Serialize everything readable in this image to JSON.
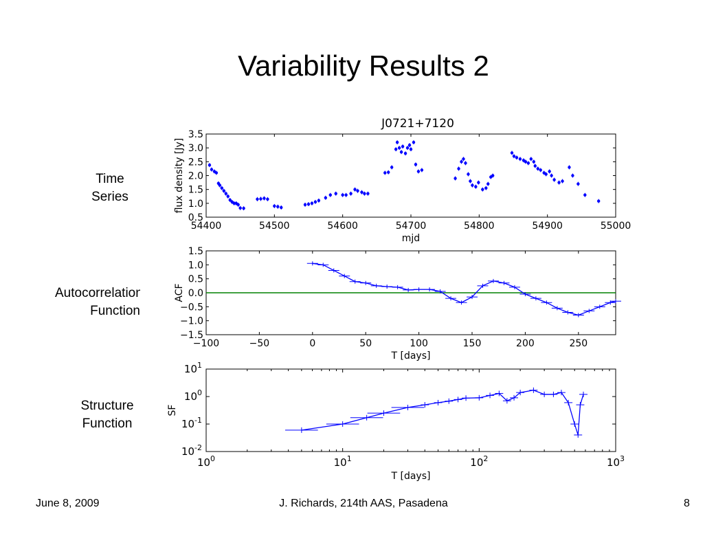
{
  "slide": {
    "title": "Variability Results 2",
    "labels": {
      "time_series": [
        "Time",
        "Series"
      ],
      "acf": [
        "Autocorrelation",
        "Function"
      ],
      "sf": [
        "Structure",
        "Function"
      ]
    },
    "footer": {
      "date": "June 8, 2009",
      "center": "J. Richards, 214th AAS, Pasadena",
      "page": "8"
    }
  },
  "chart_data": [
    {
      "type": "scatter",
      "title": "J0721+7120",
      "xlabel": "mjd",
      "ylabel": "flux density [Jy]",
      "xlim": [
        54400,
        55000
      ],
      "ylim": [
        0.5,
        3.5
      ],
      "xticks": [
        "54400",
        "54500",
        "54600",
        "54700",
        "54800",
        "54900",
        "55000"
      ],
      "yticks": [
        "0.5",
        "1.0",
        "1.5",
        "2.0",
        "2.5",
        "3.0",
        "3.5"
      ],
      "marker_color": "#0000ff",
      "x": [
        54405,
        54408,
        54412,
        54415,
        54418,
        54420,
        54423,
        54426,
        54429,
        54432,
        54435,
        54438,
        54441,
        54444,
        54447,
        54450,
        54455,
        54475,
        54480,
        54485,
        54490,
        54500,
        54505,
        54510,
        54545,
        54550,
        54555,
        54560,
        54565,
        54575,
        54582,
        54590,
        54600,
        54605,
        54612,
        54618,
        54622,
        54628,
        54632,
        54637,
        54662,
        54667,
        54672,
        54678,
        54680,
        54683,
        54686,
        54688,
        54692,
        54695,
        54698,
        54700,
        54704,
        54707,
        54711,
        54716,
        54765,
        54770,
        54774,
        54777,
        54780,
        54784,
        54787,
        54790,
        54795,
        54799,
        54805,
        54810,
        54813,
        54817,
        54820,
        54848,
        54851,
        54855,
        54860,
        54865,
        54868,
        54872,
        54876,
        54880,
        54882,
        54886,
        54890,
        54895,
        54898,
        54903,
        54906,
        54910,
        54917,
        54922,
        54932,
        54937,
        54945,
        54955,
        54975
      ],
      "y": [
        2.38,
        2.22,
        2.15,
        2.1,
        1.72,
        1.65,
        1.55,
        1.45,
        1.35,
        1.25,
        1.12,
        1.05,
        1.0,
        1.0,
        0.95,
        0.83,
        0.82,
        1.15,
        1.16,
        1.18,
        1.15,
        0.9,
        0.88,
        0.85,
        0.95,
        0.97,
        1.0,
        1.05,
        1.1,
        1.2,
        1.3,
        1.35,
        1.3,
        1.3,
        1.35,
        1.5,
        1.45,
        1.4,
        1.35,
        1.35,
        2.1,
        2.12,
        2.3,
        2.95,
        3.2,
        3.0,
        2.85,
        3.05,
        2.8,
        3.0,
        3.1,
        2.95,
        3.2,
        2.4,
        2.15,
        2.2,
        1.9,
        2.25,
        2.5,
        2.6,
        2.45,
        2.05,
        1.8,
        1.65,
        1.6,
        1.75,
        1.5,
        1.55,
        1.7,
        1.95,
        2.0,
        2.82,
        2.7,
        2.65,
        2.6,
        2.55,
        2.5,
        2.45,
        2.6,
        2.5,
        2.35,
        2.25,
        2.2,
        2.1,
        2.05,
        2.15,
        2.0,
        1.85,
        1.75,
        1.8,
        2.3,
        2.0,
        1.7,
        1.3,
        1.08
      ]
    },
    {
      "type": "line",
      "xlabel": "T [days]",
      "ylabel": "ACF",
      "xlim": [
        -100,
        285
      ],
      "ylim": [
        -1.5,
        1.5
      ],
      "xticks": [
        "−100",
        "−50",
        "0",
        "50",
        "100",
        "150",
        "200",
        "250"
      ],
      "yticks": [
        "1.5",
        "1.0",
        "0.5",
        "0.0",
        "−0.5",
        "−1.0",
        "−1.5"
      ],
      "line_color": "#0000ff",
      "zero_line_color": "#008000",
      "x": [
        0,
        10,
        20,
        30,
        40,
        50,
        60,
        70,
        80,
        90,
        100,
        110,
        120,
        130,
        140,
        150,
        160,
        170,
        180,
        190,
        200,
        210,
        220,
        230,
        240,
        250,
        260,
        270,
        280,
        285
      ],
      "y": [
        1.05,
        1.0,
        0.8,
        0.6,
        0.4,
        0.35,
        0.25,
        0.22,
        0.2,
        0.1,
        0.12,
        0.12,
        0.05,
        -0.2,
        -0.35,
        -0.15,
        0.25,
        0.42,
        0.35,
        0.2,
        -0.05,
        -0.2,
        -0.35,
        -0.55,
        -0.7,
        -0.8,
        -0.65,
        -0.5,
        -0.35,
        -0.3
      ]
    },
    {
      "type": "line",
      "xlabel": "T [days]",
      "ylabel": "SF",
      "scale": "log-log",
      "xlim": [
        1,
        1000
      ],
      "ylim": [
        0.01,
        10
      ],
      "xticks": [
        "10^0",
        "10^1",
        "10^2",
        "10^3"
      ],
      "yticks": [
        "10^1",
        "10^0",
        "10^-1",
        "10^-2"
      ],
      "line_color": "#0000ff",
      "x": [
        5,
        10,
        15,
        20,
        30,
        40,
        50,
        60,
        70,
        80,
        100,
        120,
        140,
        160,
        180,
        200,
        250,
        300,
        350,
        400,
        450,
        500,
        530,
        550,
        580
      ],
      "y": [
        0.06,
        0.1,
        0.17,
        0.25,
        0.4,
        0.5,
        0.6,
        0.68,
        0.78,
        0.88,
        0.9,
        1.1,
        1.3,
        0.7,
        0.9,
        1.4,
        1.7,
        1.2,
        1.2,
        1.4,
        0.6,
        0.1,
        0.04,
        0.5,
        1.2
      ]
    }
  ]
}
